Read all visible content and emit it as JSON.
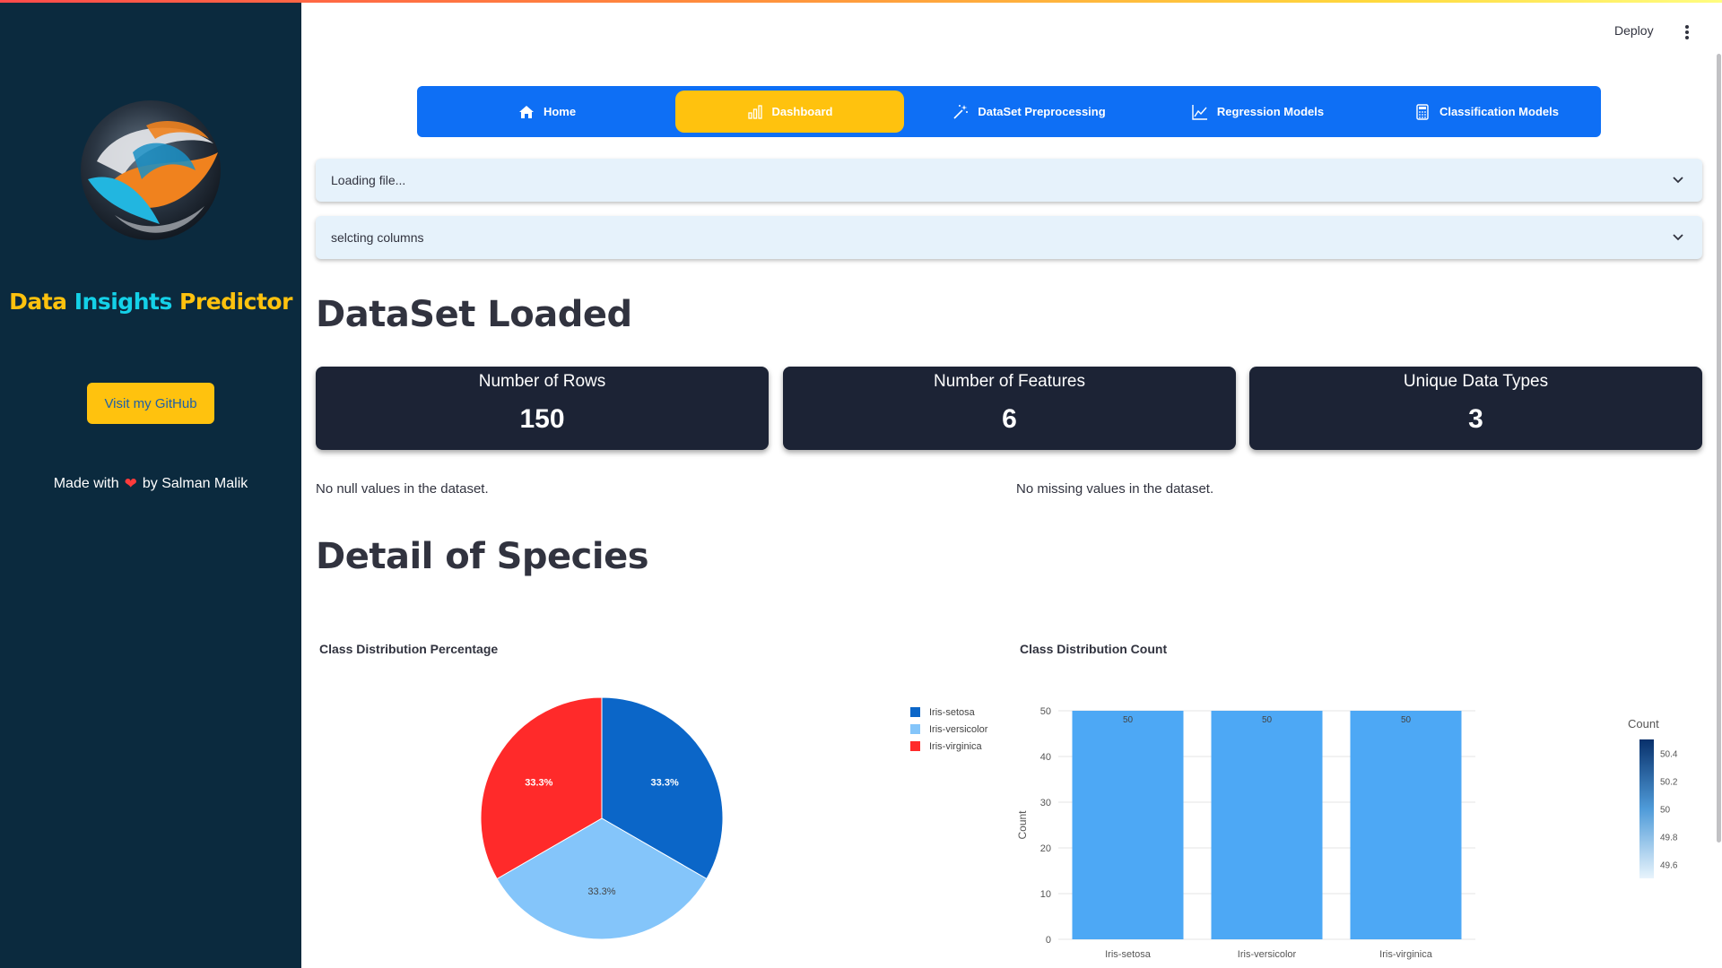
{
  "sidebar": {
    "title_part1": "Data",
    "title_part2": "Insights",
    "title_part3": "Predictor",
    "github_button": "Visit my GitHub",
    "made_with_prefix": "Made with",
    "made_with_suffix": "by Salman Malik",
    "logo_icon": "swirl-logo-icon",
    "heart_icon": "heart-icon"
  },
  "header": {
    "deploy_label": "Deploy",
    "menu_icon": "kebab-menu-icon"
  },
  "nav": {
    "items": [
      {
        "label": "Home",
        "icon": "home-icon"
      },
      {
        "label": "Dashboard",
        "icon": "bar-chart-icon",
        "active": true
      },
      {
        "label": "DataSet Preprocessing",
        "icon": "magic-wand-icon"
      },
      {
        "label": "Regression Models",
        "icon": "line-chart-icon"
      },
      {
        "label": "Classification Models",
        "icon": "calculator-icon"
      }
    ],
    "bar_color": "#0e6ff5",
    "active_color": "#ffc20e"
  },
  "expanders": {
    "loading": "Loading file...",
    "columns": "selcting columns"
  },
  "main": {
    "dataset_heading": "DataSet Loaded",
    "species_heading": "Detail of Species",
    "null_note": "No null values in the dataset.",
    "missing_note": "No missing values in the dataset."
  },
  "metrics": [
    {
      "label": "Number of Rows",
      "value": "150"
    },
    {
      "label": "Number of Features",
      "value": "6"
    },
    {
      "label": "Unique Data Types",
      "value": "3"
    }
  ],
  "chart_data": [
    {
      "type": "pie",
      "title": "Class Distribution Percentage",
      "categories": [
        "Iris-setosa",
        "Iris-versicolor",
        "Iris-virginica"
      ],
      "values": [
        33.3,
        33.3,
        33.3
      ],
      "labels": [
        "33.3%",
        "33.3%",
        "33.3%"
      ],
      "colors": [
        "#0b66c8",
        "#84c5fa",
        "#ff2a2a"
      ],
      "legend": "top-right"
    },
    {
      "type": "bar",
      "title": "Class Distribution Count",
      "categories": [
        "Iris-setosa",
        "Iris-versicolor",
        "Iris-virginica"
      ],
      "values": [
        50,
        50,
        50
      ],
      "ylabel": "Count",
      "xlabel": "",
      "ylim": [
        0,
        50
      ],
      "yticks": [
        "0",
        "10",
        "20",
        "30",
        "40",
        "50"
      ],
      "bar_color": "#4da8f5",
      "grid": true,
      "colorbar": {
        "title": "Count",
        "ticks": [
          "50.4",
          "50.2",
          "50",
          "49.8",
          "49.6"
        ],
        "range": [
          49.5,
          50.5
        ]
      }
    }
  ]
}
